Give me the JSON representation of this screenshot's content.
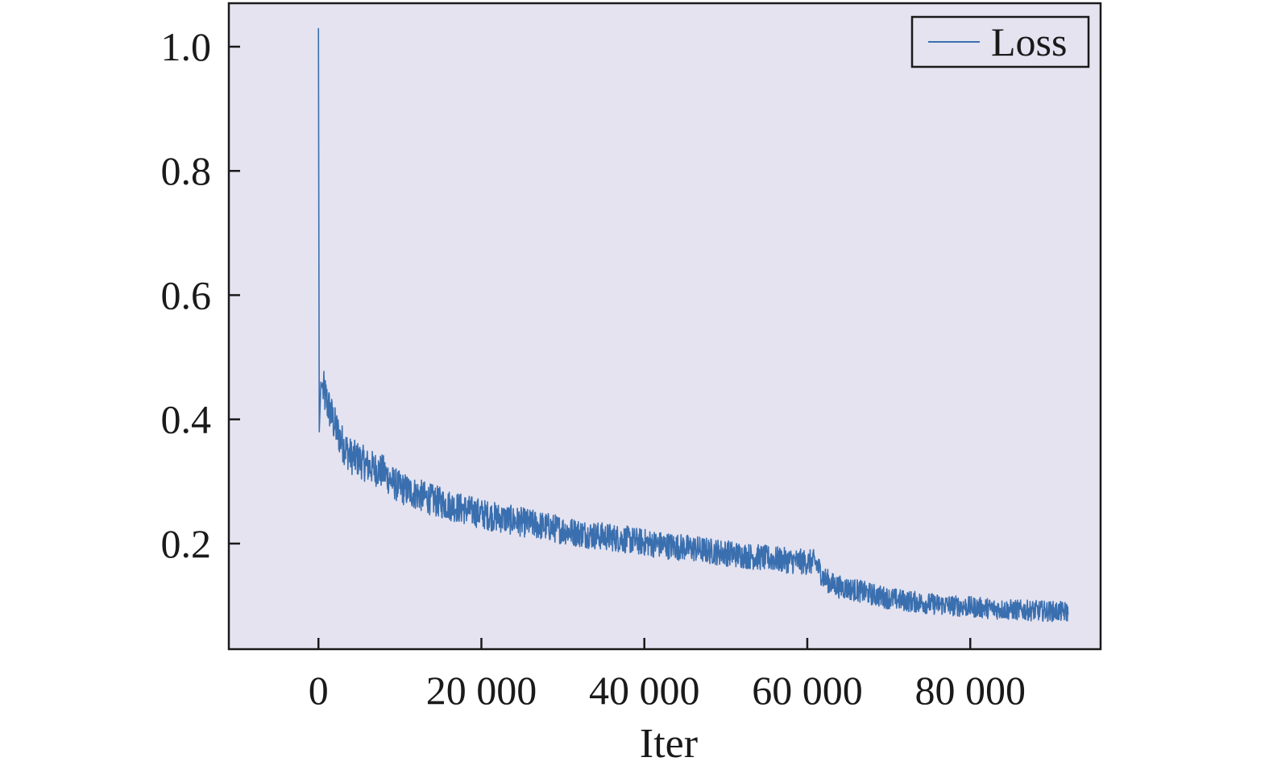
{
  "chart_data": {
    "type": "line",
    "title": "",
    "xlabel": "Iter",
    "ylabel": "",
    "xlim": [
      -11000,
      96000
    ],
    "ylim": [
      0.03,
      1.07
    ],
    "xticks": [
      0,
      20000,
      40000,
      60000,
      80000
    ],
    "xtick_labels": [
      "0",
      "20 000",
      "40 000",
      "60 000",
      "80 000"
    ],
    "yticks": [
      0.2,
      0.4,
      0.6,
      0.8,
      1.0
    ],
    "ytick_labels": [
      "0.2",
      "0.4",
      "0.6",
      "0.8",
      "1.0"
    ],
    "grid": false,
    "legend_position": "top-right",
    "colors": {
      "plot_background": "#e5e3f0",
      "line": "#3a6faf",
      "axis": "#1a1a1a"
    },
    "series": [
      {
        "name": "Loss",
        "x": [
          0,
          100,
          300,
          500,
          1000,
          2000,
          3000,
          4000,
          5000,
          6000,
          7000,
          8000,
          9000,
          10000,
          12000,
          14000,
          16000,
          18000,
          20000,
          22000,
          24000,
          26000,
          28000,
          30000,
          32000,
          34000,
          36000,
          38000,
          40000,
          42000,
          44000,
          46000,
          48000,
          50000,
          52000,
          54000,
          56000,
          58000,
          60000,
          61000,
          62000,
          63000,
          64000,
          66000,
          68000,
          70000,
          72000,
          74000,
          76000,
          78000,
          80000,
          82000,
          84000,
          86000,
          88000,
          90000,
          92000
        ],
        "y": [
          1.03,
          0.38,
          0.46,
          0.45,
          0.43,
          0.39,
          0.36,
          0.34,
          0.335,
          0.325,
          0.32,
          0.315,
          0.3,
          0.29,
          0.28,
          0.27,
          0.262,
          0.255,
          0.248,
          0.242,
          0.237,
          0.232,
          0.227,
          0.222,
          0.217,
          0.213,
          0.21,
          0.206,
          0.202,
          0.198,
          0.195,
          0.192,
          0.188,
          0.185,
          0.181,
          0.178,
          0.175,
          0.172,
          0.17,
          0.17,
          0.145,
          0.135,
          0.13,
          0.125,
          0.118,
          0.112,
          0.108,
          0.105,
          0.102,
          0.1,
          0.098,
          0.096,
          0.094,
          0.093,
          0.092,
          0.091,
          0.09
        ]
      }
    ]
  }
}
